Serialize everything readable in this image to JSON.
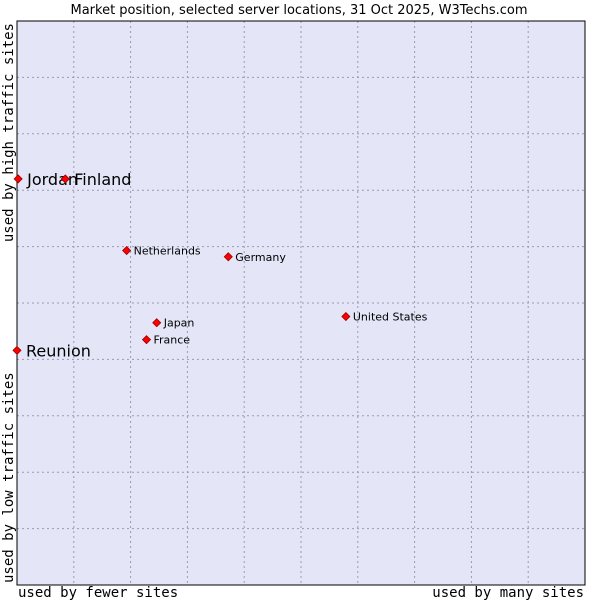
{
  "chart_data": {
    "type": "scatter",
    "title": "Market position, selected server locations, 31 Oct 2025, W3Techs.com",
    "xlabel_left": "used by fewer sites",
    "xlabel_right": "used by many sites",
    "ylabel_bottom": "used by low traffic sites",
    "ylabel_top": "used by high traffic sites",
    "xlim": [
      0,
      100
    ],
    "ylim": [
      0,
      100
    ],
    "grid": true,
    "colors": {
      "plot_background": "#e4e6f8",
      "grid": "#9a9ab0",
      "frame": "#000000",
      "marker": "#ff0000",
      "marker_edge": "#990000"
    },
    "points": [
      {
        "name": "Jordan",
        "x": 0.2,
        "y": 72.0,
        "size": "large"
      },
      {
        "name": "Finland",
        "x": 8.5,
        "y": 72.0,
        "size": "large"
      },
      {
        "name": "Netherlands",
        "x": 19.3,
        "y": 59.3,
        "size": "small"
      },
      {
        "name": "Germany",
        "x": 37.2,
        "y": 58.2,
        "size": "small"
      },
      {
        "name": "United States",
        "x": 57.9,
        "y": 47.6,
        "size": "small"
      },
      {
        "name": "Japan",
        "x": 24.6,
        "y": 46.5,
        "size": "small"
      },
      {
        "name": "France",
        "x": 22.8,
        "y": 43.5,
        "size": "small"
      },
      {
        "name": "Reunion",
        "x": 0.0,
        "y": 41.6,
        "size": "large"
      }
    ]
  }
}
